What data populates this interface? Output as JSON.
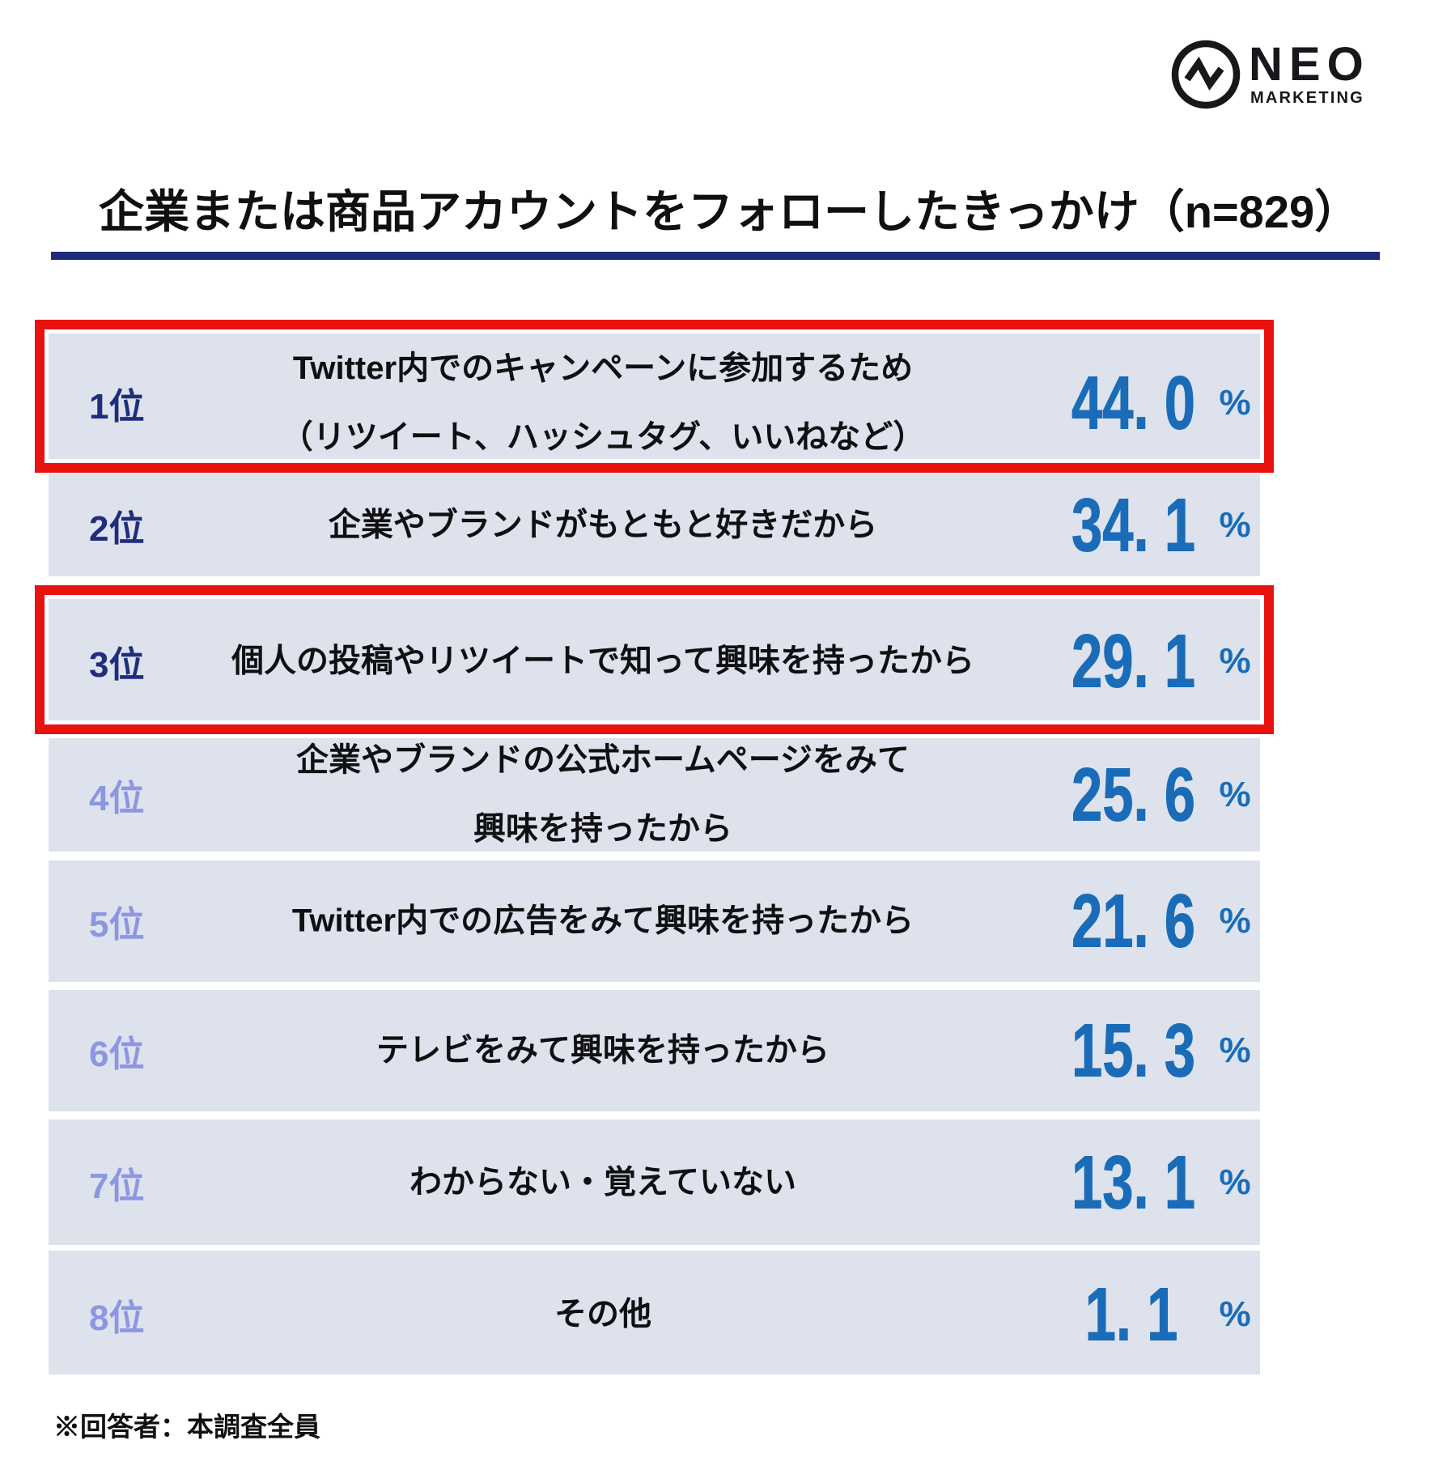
{
  "logo": {
    "name": "NEO",
    "subname": "MARKETING",
    "icon": "pulse-zigzag-icon"
  },
  "title": "企業または商品アカウントをフォローしたきっかけ（n=829）",
  "footnote": "※回答者：本調査全員",
  "colors": {
    "row_bg": "#dde2ec",
    "rank_top3": "#1f2d7c",
    "rank_other": "#8b97e0",
    "value_blue": "#1a6cb8",
    "highlight_red": "#e8130f",
    "underline_navy": "#1e2b7b"
  },
  "rows": [
    {
      "rank": "1位",
      "lines": [
        "Twitter内でのキャンペーンに参加するため",
        "（リツイート、ハッシュタグ、いいねなど）"
      ],
      "value": "44. 0",
      "unit": "%",
      "highlighted": true,
      "top3": true
    },
    {
      "rank": "2位",
      "lines": [
        "企業やブランドがもともと好きだから"
      ],
      "value": "34. 1",
      "unit": "%",
      "highlighted": false,
      "top3": true
    },
    {
      "rank": "3位",
      "lines": [
        "個人の投稿やリツイートで知って興味を持ったから"
      ],
      "value": "29. 1",
      "unit": "%",
      "highlighted": true,
      "top3": true
    },
    {
      "rank": "4位",
      "lines": [
        "企業やブランドの公式ホームページをみて",
        "興味を持ったから"
      ],
      "value": "25. 6",
      "unit": "%",
      "highlighted": false,
      "top3": false
    },
    {
      "rank": "5位",
      "lines": [
        "Twitter内での広告をみて興味を持ったから"
      ],
      "value": "21. 6",
      "unit": "%",
      "highlighted": false,
      "top3": false
    },
    {
      "rank": "6位",
      "lines": [
        "テレビをみて興味を持ったから"
      ],
      "value": "15. 3",
      "unit": "%",
      "highlighted": false,
      "top3": false
    },
    {
      "rank": "7位",
      "lines": [
        "わからない・覚えていない"
      ],
      "value": "13. 1",
      "unit": "%",
      "highlighted": false,
      "top3": false
    },
    {
      "rank": "8位",
      "lines": [
        "その他"
      ],
      "value": "1. 1",
      "unit": "%",
      "highlighted": false,
      "top3": false
    }
  ],
  "chart_data": {
    "type": "table",
    "title": "企業または商品アカウントをフォローしたきっかけ（n=829）",
    "sample_size": 829,
    "categories": [
      "Twitter内でのキャンペーンに参加するため（リツイート、ハッシュタグ、いいねなど）",
      "企業やブランドがもともと好きだから",
      "個人の投稿やリツイートで知って興味を持ったから",
      "企業やブランドの公式ホームページをみて興味を持ったから",
      "Twitter内での広告をみて興味を持ったから",
      "テレビをみて興味を持ったから",
      "わからない・覚えていない",
      "その他"
    ],
    "values": [
      44.0,
      34.1,
      29.1,
      25.6,
      21.6,
      15.3,
      13.1,
      1.1
    ],
    "unit": "%",
    "highlighted_ranks": [
      1,
      3
    ],
    "footnote": "※回答者：本調査全員"
  }
}
